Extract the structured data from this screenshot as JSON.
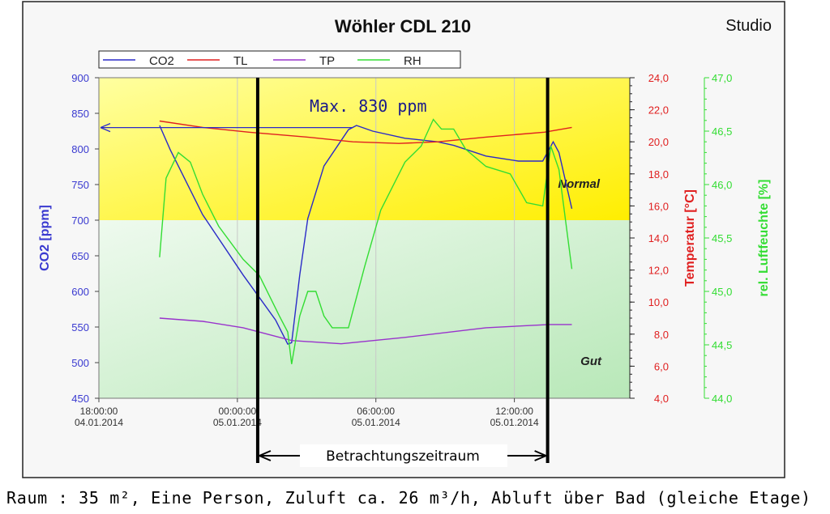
{
  "chart_data": {
    "type": "line",
    "title": "Wöhler CDL 210",
    "subtitle": "Studio",
    "x_unit": "hours since 04.01.2014 18:00",
    "xlim": [
      0,
      23
    ],
    "x_ticks": [
      {
        "h": 0,
        "time": "18:00:00",
        "date": "04.01.2014"
      },
      {
        "h": 6,
        "time": "00:00:00",
        "date": "05.01.2014"
      },
      {
        "h": 12,
        "time": "06:00:00",
        "date": "05.01.2014"
      },
      {
        "h": 18,
        "time": "12:00:00",
        "date": "05.01.2014"
      }
    ],
    "axes": {
      "co2": {
        "label": "CO2 [ppm]",
        "ylim": [
          450,
          900
        ],
        "ticks": [
          "450",
          "500",
          "550",
          "600",
          "650",
          "700",
          "750",
          "800",
          "850",
          "900"
        ],
        "color": "#3a3ad0"
      },
      "temp": {
        "label": "Temperatur [°C]",
        "ylim": [
          4,
          24
        ],
        "ticks": [
          "4,0",
          "6,0",
          "8,0",
          "10,0",
          "12,0",
          "14,0",
          "16,0",
          "18,0",
          "20,0",
          "22,0",
          "24,0"
        ],
        "color": "#e02020"
      },
      "rh": {
        "label": "rel. Luftfeuchte [%]",
        "ylim": [
          44,
          47
        ],
        "ticks": [
          "44,0",
          "44,5",
          "45,0",
          "45,5",
          "46,0",
          "46,5",
          "47,0"
        ],
        "color": "#33dd33"
      }
    },
    "legend": {
      "placement": "top-left",
      "entries": [
        "CO2",
        "TL",
        "TP",
        "RH"
      ]
    },
    "series": [
      {
        "name": "CO2",
        "axis": "co2",
        "color": "#2a2ac8",
        "x": [
          2.63,
          3.09,
          4.49,
          6.25,
          7.65,
          8.18,
          8.35,
          8.7,
          9.05,
          9.75,
          10.81,
          11.16,
          11.86,
          13.26,
          14.67,
          15.37,
          16.77,
          18.18,
          19.23,
          19.68,
          19.93,
          20.49
        ],
        "y": [
          833,
          799,
          708,
          623,
          560,
          526,
          528,
          623,
          702,
          776,
          827,
          833,
          825,
          815,
          810,
          805,
          790,
          783,
          783,
          810,
          795,
          716
        ]
      },
      {
        "name": "TL",
        "axis": "temp",
        "color": "#e02020",
        "x": [
          2.63,
          4.5,
          6.5,
          9,
          11,
          13,
          14.7,
          16.8,
          19.3,
          20.49
        ],
        "y": [
          21.3,
          20.9,
          20.6,
          20.3,
          20.0,
          19.9,
          20.0,
          20.3,
          20.6,
          20.9
        ]
      },
      {
        "name": "TP",
        "axis": "temp",
        "color": "#9933cc",
        "x": [
          2.63,
          4.5,
          6.25,
          8.35,
          10.5,
          13.26,
          16.77,
          19.5,
          20.49
        ],
        "y": [
          9.0,
          8.8,
          8.4,
          7.6,
          7.4,
          7.8,
          8.4,
          8.6,
          8.6
        ]
      },
      {
        "name": "RH",
        "axis": "rh",
        "color": "#33dd33",
        "x": [
          2.63,
          2.91,
          3.44,
          3.96,
          4.49,
          5.19,
          6.25,
          6.95,
          7.82,
          8.18,
          8.35,
          8.7,
          9.05,
          9.4,
          9.75,
          10.11,
          10.81,
          11.51,
          12.21,
          13.26,
          13.96,
          14.49,
          14.84,
          15.37,
          15.89,
          16.77,
          17.82,
          18.53,
          19.23,
          19.58,
          19.93,
          20.49
        ],
        "y": [
          45.32,
          46.06,
          46.3,
          46.21,
          45.91,
          45.61,
          45.3,
          45.15,
          44.77,
          44.62,
          44.32,
          44.77,
          45.0,
          45.0,
          44.77,
          44.66,
          44.66,
          45.23,
          45.76,
          46.21,
          46.36,
          46.61,
          46.52,
          46.52,
          46.33,
          46.17,
          46.1,
          45.83,
          45.8,
          46.36,
          46.14,
          45.21
        ]
      }
    ],
    "zones": [
      {
        "label": "Normal",
        "from": 700,
        "to": 900,
        "color": "#ffff33"
      },
      {
        "label": "Gut",
        "from": 450,
        "to": 700,
        "color": "#c9efc9"
      }
    ],
    "annotations": {
      "max": "Max. 830 ppm",
      "max_value": 830,
      "period_label": "Betrachtungszeitraum",
      "period_start": 6.88,
      "period_end": 19.44
    }
  },
  "caption": "Raum : 35 m², Eine Person, Zuluft ca. 26 m³/h, Abluft über Bad (gleiche Etage)"
}
